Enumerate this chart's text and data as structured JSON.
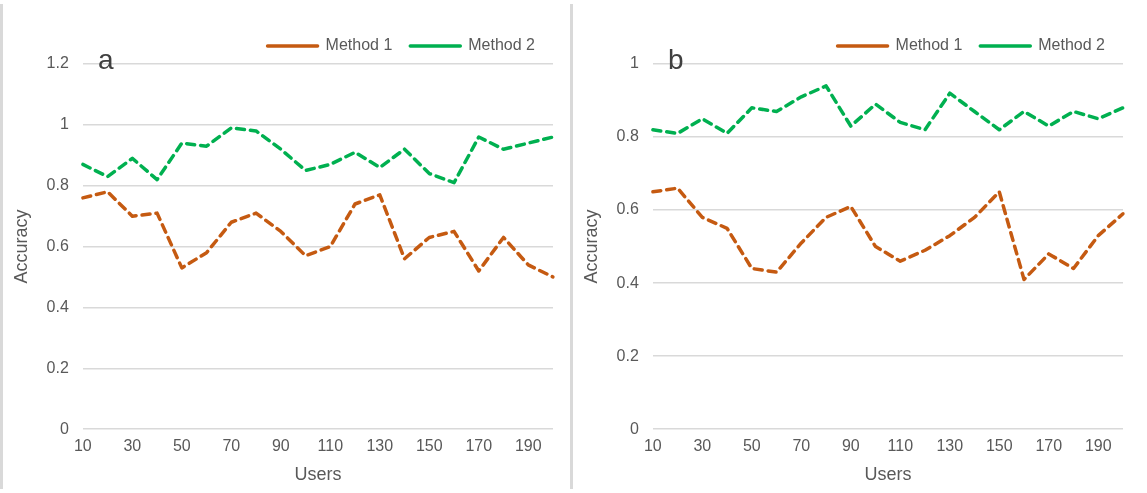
{
  "chart_data": [
    {
      "type": "line",
      "title": "a",
      "xlabel": "Users",
      "ylabel": "Accuracy",
      "categories": [
        "10",
        null,
        "30",
        null,
        "50",
        null,
        "70",
        null,
        "90",
        null,
        "110",
        null,
        "130",
        null,
        "150",
        null,
        "170",
        null,
        "190",
        null
      ],
      "series": [
        {
          "name": "Method 1",
          "color": "#c55a11",
          "values": [
            0.76,
            0.78,
            0.7,
            0.71,
            0.53,
            0.58,
            0.68,
            0.71,
            0.65,
            0.57,
            0.6,
            0.74,
            0.77,
            0.56,
            0.63,
            0.65,
            0.52,
            0.63,
            0.54,
            0.5
          ]
        },
        {
          "name": "Method 2",
          "color": "#00b050",
          "values": [
            0.87,
            0.83,
            0.89,
            0.82,
            0.94,
            0.93,
            0.99,
            0.98,
            0.92,
            0.85,
            0.87,
            0.91,
            0.86,
            0.92,
            0.84,
            0.81,
            0.96,
            0.92,
            0.94,
            0.96
          ]
        }
      ],
      "ylim": [
        0,
        1.2
      ],
      "yticks": [
        0,
        0.2,
        0.4,
        0.6,
        0.8,
        1,
        1.2
      ],
      "grid": "y",
      "legend": "top right",
      "line_style": "dashed",
      "marker": "none"
    },
    {
      "type": "line",
      "title": "b",
      "xlabel": "Users",
      "ylabel": "Accuracy",
      "categories": [
        "10",
        null,
        "30",
        null,
        "50",
        null,
        "70",
        null,
        "90",
        null,
        "110",
        null,
        "130",
        null,
        "150",
        null,
        "170",
        null,
        "190",
        null
      ],
      "series": [
        {
          "name": "Method 1",
          "color": "#c55a11",
          "values": [
            0.65,
            0.66,
            0.58,
            0.55,
            0.44,
            0.43,
            0.51,
            0.58,
            0.61,
            0.5,
            0.46,
            0.49,
            0.53,
            0.58,
            0.65,
            0.41,
            0.48,
            0.44,
            0.53,
            0.59
          ]
        },
        {
          "name": "Method 2",
          "color": "#00b050",
          "values": [
            0.82,
            0.81,
            0.85,
            0.81,
            0.88,
            0.87,
            0.91,
            0.94,
            0.83,
            0.89,
            0.84,
            0.82,
            0.92,
            0.87,
            0.82,
            0.87,
            0.83,
            0.87,
            0.85,
            0.88
          ]
        }
      ],
      "ylim": [
        0,
        1
      ],
      "yticks": [
        0,
        0.2,
        0.4,
        0.6,
        0.8,
        1
      ],
      "grid": "y",
      "legend": "top right",
      "line_style": "dashed",
      "marker": "none"
    }
  ]
}
